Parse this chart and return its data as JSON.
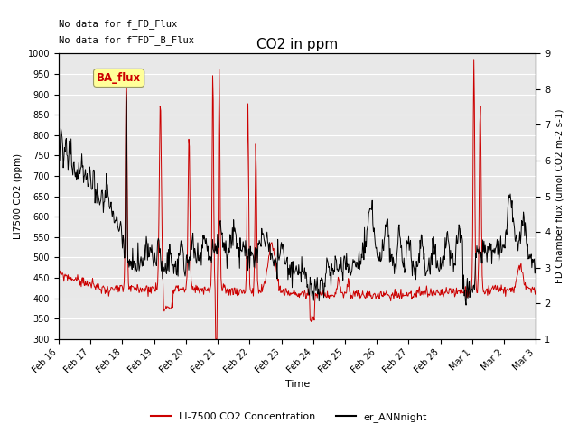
{
  "title": "CO2 in ppm",
  "xlabel": "Time",
  "ylabel_left": "LI7500 CO2 (ppm)",
  "ylabel_right": "FD Chamber flux (umol CO2 m-2 s-1)",
  "annotation1": "No data for f_FD_Flux",
  "annotation2": "No data for f̅FD̅_B_Flux",
  "legend_label1": "LI-7500 CO2 Concentration",
  "legend_label2": "er_ANNnight",
  "ba_flux_label": "BA_flux",
  "ylim_left": [
    300,
    1000
  ],
  "ylim_right": [
    1.0,
    9.0
  ],
  "yticks_left": [
    300,
    350,
    400,
    450,
    500,
    550,
    600,
    650,
    700,
    750,
    800,
    850,
    900,
    950,
    1000
  ],
  "yticks_right": [
    1.0,
    2.0,
    3.0,
    4.0,
    5.0,
    6.0,
    7.0,
    8.0,
    9.0
  ],
  "color_red": "#cc0000",
  "color_black": "#000000",
  "color_plot_bg": "#e8e8e8",
  "color_fig_bg": "#c8c8c8",
  "ba_flux_bg": "#ffff99",
  "ba_flux_text": "#cc0000",
  "fig_width": 6.4,
  "fig_height": 4.8,
  "dpi": 100,
  "xtick_labels": [
    "Feb 16",
    "Feb 17",
    "Feb 18",
    "Feb 19",
    "Feb 20",
    "Feb 21",
    "Feb 22",
    "Feb 23",
    "Feb 24",
    "Feb 25",
    "Feb 26",
    "Feb 27",
    "Feb 28",
    "Mar 1",
    "Mar 2",
    "Mar 3"
  ]
}
